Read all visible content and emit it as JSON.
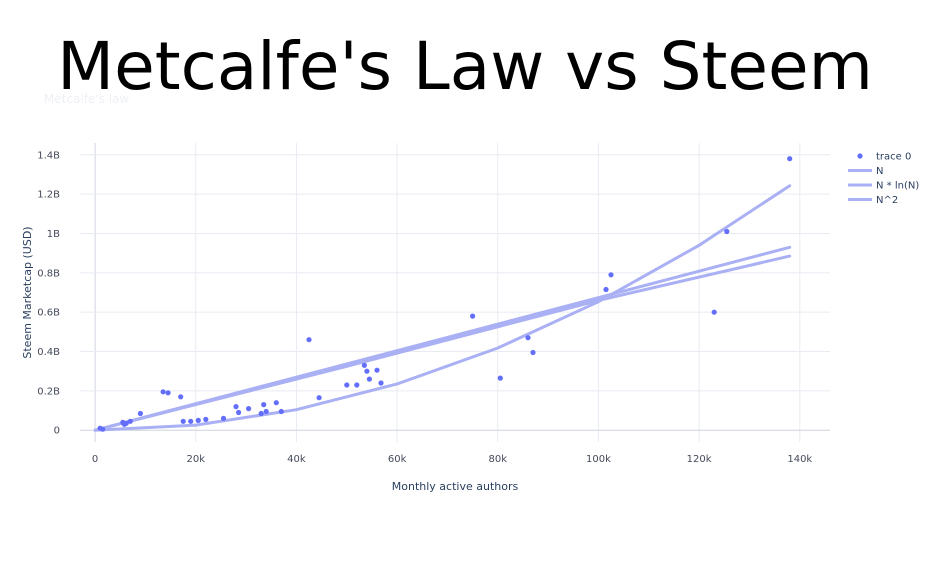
{
  "headline": "Metcalfe's Law vs Steem",
  "faint_title": "Metcalfe's law",
  "colors": {
    "marker": "#636efa",
    "line": "#aab0f4",
    "grid": "#e8ebf2",
    "zero": "#d0d4de",
    "text": "#2a3f5f"
  },
  "chart_data": {
    "type": "scatter",
    "xlabel": "Monthly active authors",
    "ylabel": "Steem Marketcap (USD)",
    "xlim": [
      -3000,
      146000
    ],
    "ylim": [
      -60000000,
      1460000000
    ],
    "x_ticks": [
      {
        "v": 0,
        "label": "0"
      },
      {
        "v": 20000,
        "label": "20k"
      },
      {
        "v": 40000,
        "label": "40k"
      },
      {
        "v": 60000,
        "label": "60k"
      },
      {
        "v": 80000,
        "label": "80k"
      },
      {
        "v": 100000,
        "label": "100k"
      },
      {
        "v": 120000,
        "label": "120k"
      },
      {
        "v": 140000,
        "label": "140k"
      }
    ],
    "y_ticks": [
      {
        "v": 0,
        "label": "0"
      },
      {
        "v": 200000000,
        "label": "0.2B"
      },
      {
        "v": 400000000,
        "label": "0.4B"
      },
      {
        "v": 600000000,
        "label": "0.6B"
      },
      {
        "v": 800000000,
        "label": "0.8B"
      },
      {
        "v": 1000000000,
        "label": "1B"
      },
      {
        "v": 1200000000,
        "label": "1.2B"
      },
      {
        "v": 1400000000,
        "label": "1.4B"
      }
    ],
    "legend_position": "top-right",
    "series": [
      {
        "name": "trace 0",
        "mode": "markers",
        "points": [
          [
            1000,
            10000000
          ],
          [
            1500,
            5000000
          ],
          [
            5500,
            40000000
          ],
          [
            5800,
            30000000
          ],
          [
            6200,
            35000000
          ],
          [
            7000,
            45000000
          ],
          [
            9000,
            85000000
          ],
          [
            13500,
            195000000
          ],
          [
            14500,
            190000000
          ],
          [
            17000,
            170000000
          ],
          [
            17500,
            45000000
          ],
          [
            19000,
            45000000
          ],
          [
            20500,
            50000000
          ],
          [
            22000,
            55000000
          ],
          [
            25500,
            60000000
          ],
          [
            28000,
            120000000
          ],
          [
            28500,
            90000000
          ],
          [
            30500,
            110000000
          ],
          [
            33000,
            85000000
          ],
          [
            33500,
            130000000
          ],
          [
            34000,
            95000000
          ],
          [
            36000,
            140000000
          ],
          [
            37000,
            95000000
          ],
          [
            42500,
            460000000
          ],
          [
            44500,
            165000000
          ],
          [
            50000,
            230000000
          ],
          [
            52000,
            230000000
          ],
          [
            53500,
            330000000
          ],
          [
            54000,
            300000000
          ],
          [
            54500,
            260000000
          ],
          [
            56000,
            305000000
          ],
          [
            56800,
            240000000
          ],
          [
            75000,
            580000000
          ],
          [
            80500,
            265000000
          ],
          [
            86000,
            470000000
          ],
          [
            87000,
            395000000
          ],
          [
            101500,
            715000000
          ],
          [
            102500,
            790000000
          ],
          [
            123000,
            600000000
          ],
          [
            125500,
            1010000000
          ],
          [
            138000,
            1380000000
          ]
        ]
      },
      {
        "name": "N",
        "mode": "lines",
        "points": [
          [
            0,
            0
          ],
          [
            138000,
            930000000
          ]
        ]
      },
      {
        "name": "N * ln(N)",
        "mode": "lines",
        "points": [
          [
            500,
            3000000
          ],
          [
            20000,
            130000000
          ],
          [
            50000,
            325000000
          ],
          [
            100000,
            660000000
          ],
          [
            138000,
            885000000
          ]
        ]
      },
      {
        "name": "N^2",
        "mode": "lines",
        "points": [
          [
            0,
            0
          ],
          [
            20000,
            26000000
          ],
          [
            40000,
            104000000
          ],
          [
            60000,
            235000000
          ],
          [
            80000,
            418000000
          ],
          [
            100000,
            653000000
          ],
          [
            120000,
            940000000
          ],
          [
            138000,
            1243000000
          ]
        ]
      }
    ]
  }
}
